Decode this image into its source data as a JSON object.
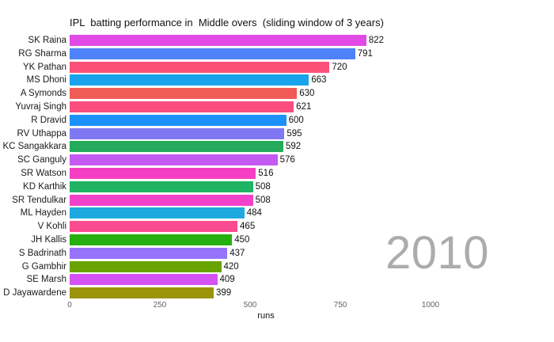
{
  "title": "IPL  batting performance in  Middle overs  (sliding window of 3 years)",
  "year_annotation": "2010",
  "chart_data": {
    "type": "bar",
    "orientation": "horizontal",
    "title": "IPL  batting performance in  Middle overs  (sliding window of 3 years)",
    "xlabel": "runs",
    "ylabel": "",
    "xlim": [
      0,
      1090
    ],
    "grid": false,
    "legend": "none",
    "annotation": "2010",
    "categories": [
      "SK Raina",
      "RG Sharma",
      "YK Pathan",
      "MS Dhoni",
      "A Symonds",
      "Yuvraj Singh",
      "R Dravid",
      "RV Uthappa",
      "KC Sangakkara",
      "SC Ganguly",
      "SR Watson",
      "KD Karthik",
      "SR Tendulkar",
      "ML Hayden",
      "V Kohli",
      "JH Kallis",
      "S Badrinath",
      "G Gambhir",
      "SE Marsh",
      "D Jayawardene"
    ],
    "values": [
      822,
      791,
      720,
      663,
      630,
      621,
      600,
      595,
      592,
      576,
      516,
      508,
      508,
      484,
      465,
      450,
      437,
      420,
      409,
      399
    ],
    "bar_colors": [
      "#e24ae6",
      "#4e82f8",
      "#fa5078",
      "#18a3ea",
      "#f15b57",
      "#fb4e7e",
      "#1c90fb",
      "#7e79f3",
      "#23aa5b",
      "#c45af2",
      "#f43fc3",
      "#1fb363",
      "#f241ca",
      "#1ea9df",
      "#fb4b90",
      "#26b00f",
      "#9673fa",
      "#69a303",
      "#d553f4",
      "#9a9408"
    ],
    "x_ticks": [
      0,
      250,
      500,
      750,
      1000
    ],
    "x_tick_labels": [
      "0",
      "250",
      "500",
      "750",
      "1000"
    ]
  },
  "colors": {
    "background": "#ffffff",
    "title_text": "#111111",
    "tick_text": "#636363",
    "value_text": "#111111",
    "year_text": "#acacac"
  }
}
